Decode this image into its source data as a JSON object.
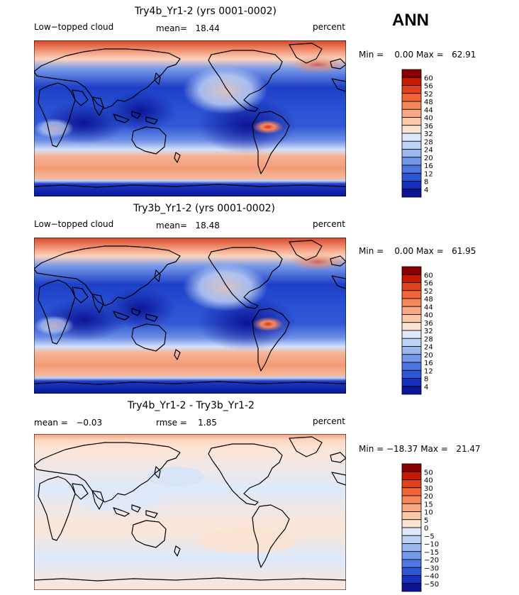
{
  "season": "ANN",
  "panels": [
    {
      "title": "Try4b_Yr1-2 (yrs 0001-0002)",
      "left_text": "Low−topped cloud",
      "mid_text": "mean=   18.44",
      "right_text": "percent",
      "minmax": "Min =    0.00 Max =   62.91",
      "levels": [
        "60",
        "56",
        "52",
        "48",
        "44",
        "40",
        "36",
        "32",
        "28",
        "24",
        "20",
        "16",
        "12",
        "8",
        "4"
      ]
    },
    {
      "title": "Try3b_Yr1-2 (yrs 0001-0002)",
      "left_text": "Low−topped cloud",
      "mid_text": "mean=   18.48",
      "right_text": "percent",
      "minmax": "Min =    0.00 Max =   61.95",
      "levels": [
        "60",
        "56",
        "52",
        "48",
        "44",
        "40",
        "36",
        "32",
        "28",
        "24",
        "20",
        "16",
        "12",
        "8",
        "4"
      ]
    },
    {
      "title": "Try4b_Yr1-2 - Try3b_Yr1-2",
      "left_text": "mean =   −0.03",
      "mid_text": "rmse =    1.85",
      "right_text": "percent",
      "minmax": "Min = −18.37 Max =   21.47",
      "levels": [
        "50",
        "40",
        "30",
        "20",
        "15",
        "10",
        "5",
        "0",
        "−5",
        "−10",
        "−15",
        "−20",
        "−30",
        "−40",
        "−50"
      ]
    }
  ],
  "colors": {
    "scale": [
      "#8a0000",
      "#c41a00",
      "#e0401a",
      "#f0653a",
      "#f5875d",
      "#f8a882",
      "#fbc8aa",
      "#fbe3d2",
      "#dde9fa",
      "#bdd3f6",
      "#9bb8f0",
      "#7398ea",
      "#4d76e2",
      "#2b56d6",
      "#1430bb",
      "#0b1596"
    ]
  }
}
